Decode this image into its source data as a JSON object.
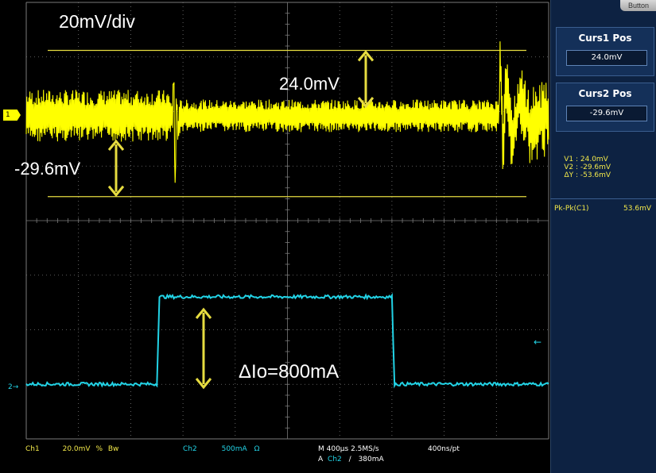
{
  "scale_label": "20mV/div",
  "annotations": {
    "overshoot": "24.0mV",
    "undershoot": "-29.6mV",
    "delta_current": "ΔIo=800mA"
  },
  "channel_markers": {
    "ch1": "1",
    "ch2": "2"
  },
  "side_panel": {
    "top_button": "Button",
    "curs1_title": "Curs1 Pos",
    "curs1_value": "24.0mV",
    "curs2_title": "Curs2 Pos",
    "curs2_value": "-29.6mV",
    "readout": [
      {
        "key": "V1 :",
        "value": "24.0mV"
      },
      {
        "key": "V2 :",
        "value": "-29.6mV"
      },
      {
        "key": "ΔY :",
        "value": "-53.6mV"
      }
    ],
    "pk_label": "Pk-Pk(C1)",
    "pk_value": "53.6mV"
  },
  "status_bar": {
    "ch1_label": "Ch1",
    "ch1_scale": "20.0mV",
    "ch1_bw": "Bw",
    "ch2_label": "Ch2",
    "ch2_scale": "500mA",
    "omega": "Ω",
    "timebase": "M 400µs 2.5MS/s",
    "trigger_prefix": "A",
    "trigger_src": "Ch2",
    "trigger_level": "380mA",
    "record": "400ns/pt"
  },
  "colors": {
    "ch1": "#ffff00",
    "ch2": "#22d3e6",
    "grid": "#7a7a7a",
    "annotation": "#ffffff",
    "cursor": "#e6dc40",
    "panel_bg": "#0d2242"
  },
  "chart_data": {
    "type": "line",
    "x_unit": "µs",
    "x_per_div": 400,
    "xlim": [
      0,
      4000
    ],
    "series": [
      {
        "name": "Ch1",
        "unit": "mV",
        "points": [
          [
            0,
            0
          ],
          [
            1120,
            0
          ],
          [
            1130,
            18
          ],
          [
            1140,
            -29.6
          ],
          [
            1150,
            10
          ],
          [
            1160,
            -6
          ],
          [
            1180,
            0
          ],
          [
            3620,
            0
          ],
          [
            3630,
            24.0
          ],
          [
            3650,
            -12
          ],
          [
            3680,
            14
          ],
          [
            3720,
            -8
          ],
          [
            3780,
            6
          ],
          [
            3850,
            -3
          ],
          [
            4000,
            0
          ]
        ],
        "ripple_mV": 6
      },
      {
        "name": "Ch2",
        "unit": "mA",
        "points": [
          [
            0,
            0
          ],
          [
            1000,
            0
          ],
          [
            1020,
            800
          ],
          [
            2800,
            800
          ],
          [
            2820,
            0
          ],
          [
            4000,
            0
          ]
        ]
      }
    ],
    "cursors": [
      {
        "name": "Curs1",
        "value_mV": 24.0
      },
      {
        "name": "Curs2",
        "value_mV": -29.6
      }
    ],
    "grid": true
  }
}
